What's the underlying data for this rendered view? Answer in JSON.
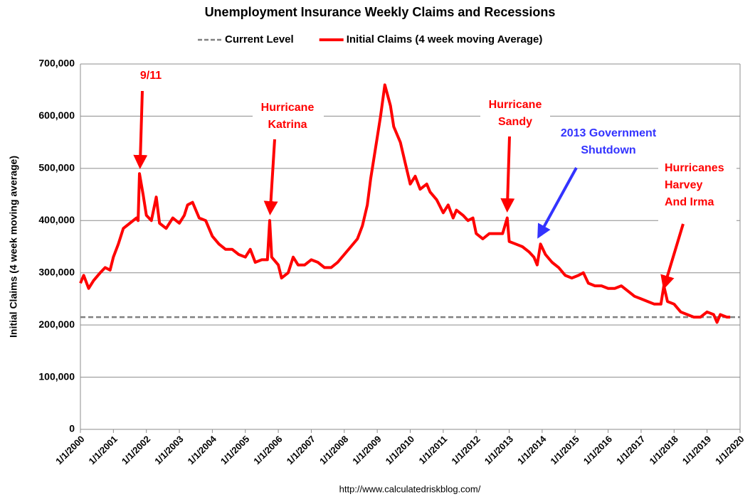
{
  "chart_data": {
    "type": "line",
    "title": "Unemployment Insurance Weekly Claims and Recessions",
    "y_label": "Initial Claims (4 week moving average)",
    "source": "http://www.calculatedriskblog.com/",
    "legend": "top",
    "grid": true,
    "xlim": [
      2000,
      2020
    ],
    "xticks": [
      {
        "value": 2000,
        "label": "1/1/2000"
      },
      {
        "value": 2001,
        "label": "1/1/2001"
      },
      {
        "value": 2002,
        "label": "1/1/2002"
      },
      {
        "value": 2003,
        "label": "1/1/2003"
      },
      {
        "value": 2004,
        "label": "1/1/2004"
      },
      {
        "value": 2005,
        "label": "1/1/2005"
      },
      {
        "value": 2006,
        "label": "1/1/2006"
      },
      {
        "value": 2007,
        "label": "1/1/2007"
      },
      {
        "value": 2008,
        "label": "1/1/2008"
      },
      {
        "value": 2009,
        "label": "1/1/2009"
      },
      {
        "value": 2010,
        "label": "1/1/2010"
      },
      {
        "value": 2011,
        "label": "1/1/2011"
      },
      {
        "value": 2012,
        "label": "1/1/2012"
      },
      {
        "value": 2013,
        "label": "1/1/2013"
      },
      {
        "value": 2014,
        "label": "1/1/2014"
      },
      {
        "value": 2015,
        "label": "1/1/2015"
      },
      {
        "value": 2016,
        "label": "1/1/2016"
      },
      {
        "value": 2017,
        "label": "1/1/2017"
      },
      {
        "value": 2018,
        "label": "1/1/2018"
      },
      {
        "value": 2019,
        "label": "1/1/2019"
      },
      {
        "value": 2020,
        "label": "1/1/2020"
      }
    ],
    "ylim": [
      0,
      700000
    ],
    "yticks": [
      0,
      {
        "value": 100000,
        "label": "100,000"
      },
      {
        "value": 200000,
        "label": "200,000"
      },
      {
        "value": 300000,
        "label": "300,000"
      },
      {
        "value": 400000,
        "label": "400,000"
      },
      {
        "value": 500000,
        "label": "500,000"
      },
      {
        "value": 600000,
        "label": "600,000"
      },
      {
        "value": 700000,
        "label": "700,000"
      }
    ],
    "series": [
      {
        "name": "Current Level",
        "color": "#808080",
        "dashed": true,
        "x": [
          2000,
          2020
        ],
        "values": [
          215000,
          215000
        ]
      },
      {
        "name": "Initial Claims (4 week moving Average)",
        "color": "#ff0000",
        "dashed": false,
        "x": [
          2000.0,
          2000.1,
          2000.25,
          2000.4,
          2000.6,
          2000.75,
          2000.9,
          2001.0,
          2001.15,
          2001.3,
          2001.5,
          2001.7,
          2001.75,
          2001.79,
          2001.9,
          2002.0,
          2002.15,
          2002.3,
          2002.4,
          2002.6,
          2002.8,
          2003.0,
          2003.15,
          2003.25,
          2003.4,
          2003.6,
          2003.8,
          2004.0,
          2004.2,
          2004.4,
          2004.6,
          2004.8,
          2005.0,
          2005.15,
          2005.3,
          2005.5,
          2005.67,
          2005.74,
          2005.8,
          2006.0,
          2006.1,
          2006.3,
          2006.45,
          2006.6,
          2006.8,
          2007.0,
          2007.2,
          2007.4,
          2007.6,
          2007.8,
          2008.0,
          2008.2,
          2008.4,
          2008.55,
          2008.7,
          2008.8,
          2009.0,
          2009.1,
          2009.23,
          2009.4,
          2009.5,
          2009.7,
          2009.85,
          2010.0,
          2010.15,
          2010.3,
          2010.5,
          2010.6,
          2010.8,
          2011.0,
          2011.15,
          2011.3,
          2011.4,
          2011.6,
          2011.75,
          2011.9,
          2012.0,
          2012.2,
          2012.4,
          2012.6,
          2012.8,
          2012.94,
          2013.0,
          2013.2,
          2013.4,
          2013.6,
          2013.75,
          2013.85,
          2013.95,
          2014.1,
          2014.3,
          2014.5,
          2014.7,
          2014.9,
          2015.1,
          2015.25,
          2015.4,
          2015.6,
          2015.8,
          2016.0,
          2016.2,
          2016.4,
          2016.6,
          2016.8,
          2017.0,
          2017.2,
          2017.4,
          2017.6,
          2017.69,
          2017.8,
          2018.0,
          2018.2,
          2018.4,
          2018.6,
          2018.8,
          2019.0,
          2019.2,
          2019.3,
          2019.4,
          2019.6,
          2019.7
        ],
        "values": [
          280000,
          295000,
          270000,
          285000,
          300000,
          310000,
          305000,
          330000,
          355000,
          385000,
          395000,
          405000,
          400000,
          490000,
          450000,
          410000,
          400000,
          445000,
          395000,
          385000,
          405000,
          395000,
          410000,
          430000,
          435000,
          405000,
          400000,
          370000,
          355000,
          345000,
          345000,
          335000,
          330000,
          345000,
          320000,
          325000,
          325000,
          400000,
          330000,
          315000,
          290000,
          300000,
          330000,
          315000,
          315000,
          325000,
          320000,
          310000,
          310000,
          320000,
          335000,
          350000,
          365000,
          390000,
          430000,
          480000,
          560000,
          600000,
          660000,
          620000,
          580000,
          550000,
          510000,
          470000,
          485000,
          460000,
          470000,
          455000,
          440000,
          415000,
          430000,
          405000,
          420000,
          410000,
          400000,
          405000,
          375000,
          365000,
          375000,
          375000,
          375000,
          405000,
          360000,
          355000,
          350000,
          340000,
          330000,
          315000,
          355000,
          335000,
          320000,
          310000,
          295000,
          290000,
          295000,
          300000,
          280000,
          275000,
          275000,
          270000,
          270000,
          275000,
          265000,
          255000,
          250000,
          245000,
          240000,
          240000,
          275000,
          245000,
          240000,
          225000,
          220000,
          215000,
          215000,
          225000,
          220000,
          205000,
          220000,
          215000,
          215000
        ]
      }
    ],
    "annotations": [
      {
        "lines": [
          "9/11"
        ],
        "color": "#ff0000"
      },
      {
        "lines": [
          "Hurricane",
          "Katrina"
        ],
        "color": "#ff0000"
      },
      {
        "lines": [
          "Hurricane",
          "Sandy"
        ],
        "color": "#ff0000"
      },
      {
        "lines": [
          "2013 Government",
          "Shutdown"
        ],
        "color": "#3333ff"
      },
      {
        "lines": [
          "Hurricanes",
          "Harvey",
          "And Irma"
        ],
        "color": "#ff0000"
      }
    ]
  }
}
